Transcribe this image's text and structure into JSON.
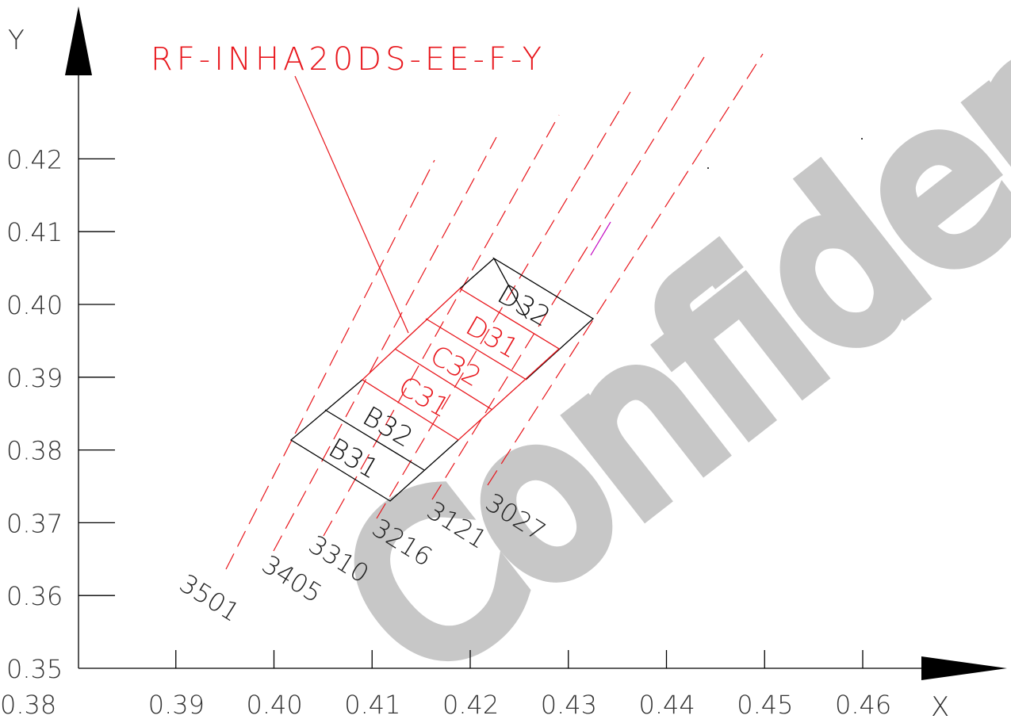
{
  "watermark": "Confidential",
  "title": "RF-INHA20DS-EE-F-Y",
  "axes": {
    "x_label": "X",
    "y_label": "Y",
    "x_ticks": [
      "0.38",
      "0.39",
      "0.40",
      "0.41",
      "0.42",
      "0.43",
      "0.44",
      "0.45",
      "0.46"
    ],
    "y_ticks": [
      "0.35",
      "0.36",
      "0.37",
      "0.38",
      "0.39",
      "0.40",
      "0.41",
      "0.42"
    ],
    "xlim": [
      0.38,
      0.46
    ],
    "ylim": [
      0.35,
      0.42
    ]
  },
  "scan_lines": [
    "3501",
    "3405",
    "3310",
    "3216",
    "3121",
    "3027"
  ],
  "dies_black": [
    "B31",
    "B32",
    "D32"
  ],
  "dies_red": [
    "C31",
    "C32",
    "D31"
  ],
  "colors": {
    "axis": "#000000",
    "highlight": "#e8151b",
    "watermark": "#c7c7c7",
    "marker": "#c000c0"
  }
}
